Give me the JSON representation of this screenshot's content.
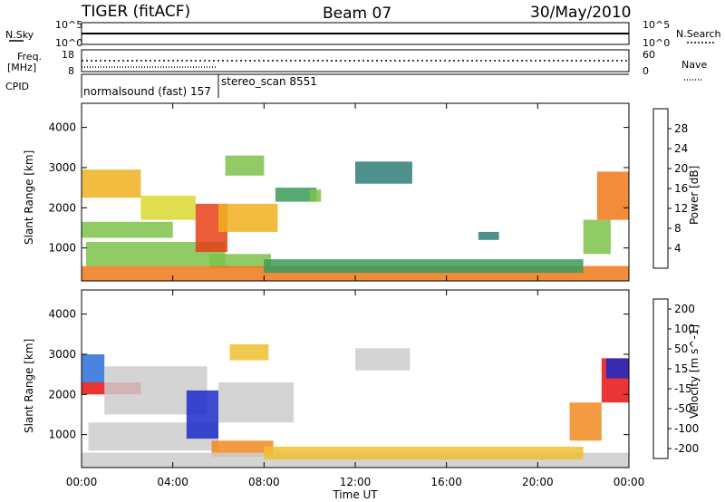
{
  "header": {
    "radar": "TIGER (fitACF)",
    "beam": "Beam 07",
    "date": "30/May/2010"
  },
  "strips": {
    "sky_label": "N.Sky",
    "search_label": "N.Search",
    "sky_left_ticks": [
      "10^5",
      "10^0"
    ],
    "sky_right_ticks": [
      "10^5",
      "10^0"
    ],
    "freq_label_line1": "Freq.",
    "freq_label_line2": "[MHz]",
    "freq_ticks": [
      "18",
      "8"
    ],
    "nave_label": "Nave",
    "nave_ticks": [
      "60",
      "0"
    ],
    "cpid_label": "CPID",
    "cpid_segments": [
      {
        "name": "normalsound (fast) 157",
        "start_hour": 0,
        "end_hour": 6
      },
      {
        "name": "stereo_scan 8551",
        "start_hour": 6,
        "end_hour": 24
      }
    ]
  },
  "axes": {
    "time_label": "Time UT",
    "time_ticks": [
      "00:00",
      "04:00",
      "08:00",
      "12:00",
      "16:00",
      "20:00",
      "00:00"
    ],
    "range_label": "Slant Range [km]",
    "range_ticks": [
      "1000",
      "2000",
      "3000",
      "4000"
    ]
  },
  "colorbars": {
    "power": {
      "label": "Power [dB]",
      "ticks": [
        "4",
        "8",
        "12",
        "16",
        "20",
        "24",
        "28"
      ],
      "colors": [
        "#0020e0",
        "#1c4fb0",
        "#2f7d78",
        "#3c9a5a",
        "#7cc24a",
        "#d8d830",
        "#f0b020",
        "#f07818",
        "#e84018",
        "#e01010"
      ]
    },
    "velocity": {
      "label": "Velocity [m s^-1]",
      "ticks": [
        "200",
        "100",
        "50",
        "15",
        "-15",
        "-50",
        "-100",
        "-200"
      ],
      "colors": [
        "#1a2cc8",
        "#2a6ed8",
        "#2aa060",
        "#5cc040",
        "#cccccc",
        "#f0c030",
        "#f08a20",
        "#f05a18",
        "#e81010"
      ]
    }
  },
  "chart_data": [
    {
      "type": "heatmap",
      "panel": "power",
      "x_unit": "hours UT",
      "y_unit": "km",
      "xlim": [
        0,
        24
      ],
      "ylim": [
        180,
        4600
      ],
      "zlim": [
        0,
        30
      ],
      "ylabel": "Slant Range [km]",
      "xlabel": "Time UT",
      "colorbar_label": "Power [dB]",
      "bands": [
        {
          "t0": 0.0,
          "t1": 2.6,
          "r0": 2250,
          "r1": 2950,
          "value": 18
        },
        {
          "t0": 2.6,
          "t1": 5.0,
          "r0": 1700,
          "r1": 2300,
          "value": 16
        },
        {
          "t0": 0.0,
          "t1": 4.0,
          "r0": 1250,
          "r1": 1650,
          "value": 12
        },
        {
          "t0": 0.2,
          "t1": 6.3,
          "r0": 550,
          "r1": 1150,
          "value": 14
        },
        {
          "t0": 5.0,
          "t1": 6.4,
          "r0": 900,
          "r1": 2100,
          "value": 26
        },
        {
          "t0": 6.0,
          "t1": 8.6,
          "r0": 1400,
          "r1": 2100,
          "value": 18
        },
        {
          "t0": 6.3,
          "t1": 8.0,
          "r0": 2800,
          "r1": 3300,
          "value": 14
        },
        {
          "t0": 8.5,
          "t1": 10.3,
          "r0": 2150,
          "r1": 2500,
          "value": 10
        },
        {
          "t0": 5.6,
          "t1": 8.3,
          "r0": 500,
          "r1": 850,
          "value": 12
        },
        {
          "t0": 10.0,
          "t1": 10.5,
          "r0": 2150,
          "r1": 2450,
          "value": 12
        },
        {
          "t0": 12.0,
          "t1": 14.5,
          "r0": 2600,
          "r1": 3150,
          "value": 6
        },
        {
          "t0": 17.4,
          "t1": 18.3,
          "r0": 1200,
          "r1": 1400,
          "value": 8
        },
        {
          "t0": 22.0,
          "t1": 23.2,
          "r0": 850,
          "r1": 1700,
          "value": 12
        },
        {
          "t0": 22.6,
          "t1": 24.0,
          "r0": 1700,
          "r1": 2900,
          "value": 22
        },
        {
          "t0": 0.0,
          "t1": 24.0,
          "r0": 180,
          "r1": 550,
          "value": 22
        },
        {
          "t0": 8.0,
          "t1": 22.0,
          "r0": 380,
          "r1": 720,
          "value": 10
        }
      ]
    },
    {
      "type": "heatmap",
      "panel": "velocity",
      "x_unit": "hours UT",
      "y_unit": "km",
      "xlim": [
        0,
        24
      ],
      "ylim": [
        180,
        4600
      ],
      "zlim": [
        -250,
        250
      ],
      "ylabel": "Slant Range [km]",
      "xlabel": "Time UT",
      "colorbar_label": "Velocity [m s^-1]",
      "bands": [
        {
          "t0": 0.0,
          "t1": 1.0,
          "r0": 2300,
          "r1": 3000,
          "value": 150
        },
        {
          "t0": 0.0,
          "t1": 2.6,
          "r0": 2000,
          "r1": 2300,
          "value": -200
        },
        {
          "t0": 1.0,
          "t1": 5.5,
          "r0": 1500,
          "r1": 2700,
          "value": 0
        },
        {
          "t0": 0.3,
          "t1": 6.0,
          "r0": 600,
          "r1": 1300,
          "value": 0
        },
        {
          "t0": 4.6,
          "t1": 6.0,
          "r0": 900,
          "r1": 2100,
          "value": 200
        },
        {
          "t0": 6.0,
          "t1": 9.3,
          "r0": 1300,
          "r1": 2300,
          "value": 0
        },
        {
          "t0": 6.5,
          "t1": 8.2,
          "r0": 2850,
          "r1": 3250,
          "value": -60
        },
        {
          "t0": 5.7,
          "t1": 8.4,
          "r0": 450,
          "r1": 850,
          "value": -100
        },
        {
          "t0": 12.0,
          "t1": 14.4,
          "r0": 2600,
          "r1": 3150,
          "value": 0
        },
        {
          "t0": 21.4,
          "t1": 22.8,
          "r0": 850,
          "r1": 1800,
          "value": -100
        },
        {
          "t0": 22.8,
          "t1": 24.0,
          "r0": 1800,
          "r1": 2900,
          "value": -200
        },
        {
          "t0": 23.0,
          "t1": 24.0,
          "r0": 2400,
          "r1": 2900,
          "value": 200
        },
        {
          "t0": 0.0,
          "t1": 24.0,
          "r0": 180,
          "r1": 550,
          "value": 25
        },
        {
          "t0": 8.0,
          "t1": 22.0,
          "r0": 380,
          "r1": 700,
          "value": -40
        }
      ]
    }
  ]
}
